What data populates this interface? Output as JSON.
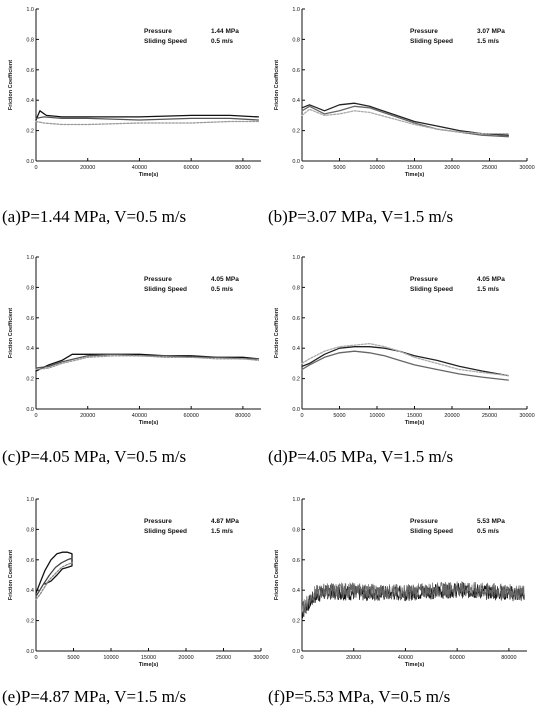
{
  "chart_data": [
    {
      "type": "line",
      "caption": "(a)P=1.44 MPa, V=0.5 m/s",
      "xlabel": "Time(s)",
      "ylabel": "Friction Coefficient",
      "xlim": [
        0,
        87000
      ],
      "ylim": [
        0,
        1.0
      ],
      "xticks": [
        "0",
        "20000",
        "40000",
        "60000",
        "80000"
      ],
      "yticks": [
        "0.0",
        "0.2",
        "0.4",
        "0.6",
        "0.8",
        "1.0"
      ],
      "annotation": [
        [
          "Pressure",
          "1.44 MPa"
        ],
        [
          "Sliding Speed",
          "0.5 m/s"
        ]
      ],
      "series": [
        {
          "color": "#111111",
          "x": [
            0,
            1500,
            4000,
            10000,
            20000,
            40000,
            60000,
            75000,
            86000
          ],
          "y": [
            0.27,
            0.33,
            0.3,
            0.29,
            0.29,
            0.29,
            0.3,
            0.3,
            0.29
          ]
        },
        {
          "color": "#555555",
          "x": [
            0,
            3000,
            10000,
            20000,
            40000,
            60000,
            75000,
            86000
          ],
          "y": [
            0.28,
            0.29,
            0.28,
            0.28,
            0.27,
            0.28,
            0.28,
            0.27
          ]
        },
        {
          "color": "#999999",
          "x": [
            0,
            3000,
            10000,
            20000,
            40000,
            60000,
            75000,
            86000
          ],
          "y": [
            0.26,
            0.25,
            0.24,
            0.24,
            0.25,
            0.25,
            0.26,
            0.26
          ]
        }
      ]
    },
    {
      "type": "line",
      "caption": "(b)P=3.07 MPa, V=1.5 m/s",
      "xlabel": "Time(s)",
      "ylabel": "Friction Coefficient",
      "xlim": [
        0,
        30000
      ],
      "ylim": [
        0,
        1.0
      ],
      "xticks": [
        "0",
        "5000",
        "10000",
        "15000",
        "20000",
        "25000",
        "30000"
      ],
      "yticks": [
        "0.0",
        "0.2",
        "0.4",
        "0.6",
        "0.8",
        "1.0"
      ],
      "annotation": [
        [
          "Pressure",
          "3.07 MPa"
        ],
        [
          "Sliding Speed",
          "1.5 m/s"
        ]
      ],
      "series": [
        {
          "color": "#222222",
          "x": [
            0,
            1000,
            3000,
            5000,
            7000,
            9000,
            12000,
            15000,
            18000,
            21000,
            24000,
            27500
          ],
          "y": [
            0.35,
            0.37,
            0.33,
            0.37,
            0.38,
            0.36,
            0.31,
            0.26,
            0.23,
            0.2,
            0.18,
            0.17
          ]
        },
        {
          "color": "#666666",
          "x": [
            0,
            1000,
            3000,
            5000,
            7000,
            9000,
            12000,
            15000,
            18000,
            21000,
            24000,
            27500
          ],
          "y": [
            0.33,
            0.36,
            0.31,
            0.33,
            0.36,
            0.35,
            0.3,
            0.25,
            0.21,
            0.19,
            0.17,
            0.16
          ]
        },
        {
          "color": "#aaaaaa",
          "x": [
            0,
            1000,
            3000,
            5000,
            7000,
            9000,
            12000,
            15000,
            18000,
            21000,
            24000,
            27500
          ],
          "y": [
            0.3,
            0.34,
            0.3,
            0.31,
            0.33,
            0.32,
            0.28,
            0.24,
            0.21,
            0.19,
            0.18,
            0.18
          ]
        }
      ]
    },
    {
      "type": "line",
      "caption": "(c)P=4.05 MPa, V=0.5 m/s",
      "xlabel": "Time(s)",
      "ylabel": "Friction Coefficient",
      "xlim": [
        0,
        87000
      ],
      "ylim": [
        0,
        1.0
      ],
      "xticks": [
        "0",
        "20000",
        "40000",
        "60000",
        "80000"
      ],
      "yticks": [
        "0.0",
        "0.2",
        "0.4",
        "0.6",
        "0.8",
        "1.0"
      ],
      "annotation": [
        [
          "Pressure",
          "4.05 MPa"
        ],
        [
          "Sliding Speed",
          "0.5 m/s"
        ]
      ],
      "series": [
        {
          "color": "#111111",
          "x": [
            0,
            5000,
            10000,
            14000,
            20000,
            30000,
            40000,
            50000,
            60000,
            70000,
            80000,
            86000
          ],
          "y": [
            0.25,
            0.29,
            0.32,
            0.36,
            0.36,
            0.36,
            0.36,
            0.35,
            0.35,
            0.34,
            0.34,
            0.33
          ]
        },
        {
          "color": "#555555",
          "x": [
            0,
            5000,
            10000,
            15000,
            20000,
            30000,
            40000,
            50000,
            60000,
            70000,
            80000,
            86000
          ],
          "y": [
            0.27,
            0.28,
            0.31,
            0.33,
            0.35,
            0.36,
            0.35,
            0.35,
            0.34,
            0.34,
            0.33,
            0.33
          ]
        },
        {
          "color": "#999999",
          "x": [
            0,
            5000,
            10000,
            15000,
            20000,
            30000,
            40000,
            50000,
            60000,
            70000,
            80000,
            86000
          ],
          "y": [
            0.26,
            0.27,
            0.3,
            0.32,
            0.34,
            0.35,
            0.35,
            0.34,
            0.34,
            0.33,
            0.33,
            0.32
          ]
        }
      ]
    },
    {
      "type": "line",
      "caption": "(d)P=4.05 MPa, V=1.5 m/s",
      "xlabel": "Time(s)",
      "ylabel": "Friction Coefficient",
      "xlim": [
        0,
        30000
      ],
      "ylim": [
        0,
        1.0
      ],
      "xticks": [
        "0",
        "5000",
        "10000",
        "15000",
        "20000",
        "25000",
        "30000"
      ],
      "yticks": [
        "0.0",
        "0.2",
        "0.4",
        "0.6",
        "0.8",
        "1.0"
      ],
      "annotation": [
        [
          "Pressure",
          "4.05 MPa"
        ],
        [
          "Sliding Speed",
          "1.5 m/s"
        ]
      ],
      "series": [
        {
          "color": "#222222",
          "x": [
            0,
            1000,
            3000,
            5000,
            7000,
            9000,
            11000,
            13000,
            15000,
            18000,
            21000,
            24000,
            27500
          ],
          "y": [
            0.28,
            0.3,
            0.36,
            0.4,
            0.41,
            0.41,
            0.4,
            0.38,
            0.35,
            0.32,
            0.28,
            0.25,
            0.22
          ]
        },
        {
          "color": "#666666",
          "x": [
            0,
            1000,
            3000,
            5000,
            7000,
            9000,
            11000,
            13000,
            15000,
            18000,
            21000,
            24000,
            27500
          ],
          "y": [
            0.26,
            0.29,
            0.34,
            0.37,
            0.38,
            0.37,
            0.35,
            0.32,
            0.29,
            0.26,
            0.23,
            0.21,
            0.19
          ]
        },
        {
          "color": "#aaaaaa",
          "x": [
            0,
            1000,
            3000,
            5000,
            7000,
            9000,
            11000,
            13000,
            15000,
            18000,
            21000,
            24000,
            27500
          ],
          "y": [
            0.3,
            0.33,
            0.38,
            0.41,
            0.42,
            0.43,
            0.41,
            0.38,
            0.34,
            0.3,
            0.26,
            0.24,
            0.22
          ]
        }
      ]
    },
    {
      "type": "line",
      "caption": "(e)P=4.87 MPa, V=1.5 m/s",
      "xlabel": "Time(s)",
      "ylabel": "Friction Coefficient",
      "xlim": [
        0,
        30000
      ],
      "ylim": [
        0,
        1.0
      ],
      "xticks": [
        "0",
        "5000",
        "10000",
        "15000",
        "20000",
        "25000",
        "30000"
      ],
      "yticks": [
        "0.0",
        "0.2",
        "0.4",
        "0.6",
        "0.8",
        "1.0"
      ],
      "annotation": [
        [
          "Pressure",
          "4.87 MPa"
        ],
        [
          "Sliding Speed",
          "1.5 m/s"
        ]
      ],
      "series": [
        {
          "color": "#111111",
          "x": [
            0,
            300,
            700,
            1200,
            2000,
            2800,
            3500,
            4200,
            4800,
            4800,
            4200,
            3500,
            2800,
            2000,
            1200
          ],
          "y": [
            0.38,
            0.42,
            0.47,
            0.53,
            0.6,
            0.64,
            0.65,
            0.65,
            0.64,
            0.56,
            0.55,
            0.54,
            0.5,
            0.46,
            0.44
          ]
        },
        {
          "color": "#444444",
          "x": [
            0,
            500,
            1000,
            1800,
            2600,
            3400,
            4200,
            4800
          ],
          "y": [
            0.36,
            0.4,
            0.44,
            0.5,
            0.55,
            0.58,
            0.6,
            0.61
          ]
        },
        {
          "color": "#888888",
          "x": [
            0,
            500,
            1000,
            1800,
            2600,
            3400,
            4200,
            4800
          ],
          "y": [
            0.34,
            0.37,
            0.41,
            0.47,
            0.51,
            0.55,
            0.57,
            0.58
          ]
        }
      ]
    },
    {
      "type": "line",
      "caption": "(f)P=5.53 MPa, V=0.5 m/s",
      "xlabel": "Time(s)",
      "ylabel": "Friction Coefficient",
      "xlim": [
        0,
        87000
      ],
      "ylim": [
        0,
        1.0
      ],
      "xticks": [
        "0",
        "20000",
        "40000",
        "60000",
        "80000"
      ],
      "yticks": [
        "0.0",
        "0.2",
        "0.4",
        "0.6",
        "0.8",
        "1.0"
      ],
      "annotation": [
        [
          "Pressure",
          "5.53 MPa"
        ],
        [
          "Sliding Speed",
          "0.5 m/s"
        ]
      ],
      "noise": 0.05,
      "series": [
        {
          "color": "#111111",
          "x": [
            0,
            2000,
            5000,
            10000,
            20000,
            30000,
            40000,
            50000,
            60000,
            70000,
            80000,
            86000
          ],
          "y": [
            0.25,
            0.3,
            0.36,
            0.39,
            0.38,
            0.38,
            0.38,
            0.39,
            0.4,
            0.39,
            0.38,
            0.37
          ]
        },
        {
          "color": "#666666",
          "x": [
            0,
            2000,
            5000,
            10000,
            20000,
            30000,
            40000,
            50000,
            60000,
            70000,
            80000,
            86000
          ],
          "y": [
            0.27,
            0.32,
            0.38,
            0.4,
            0.4,
            0.39,
            0.39,
            0.4,
            0.41,
            0.4,
            0.39,
            0.38
          ]
        }
      ]
    }
  ]
}
